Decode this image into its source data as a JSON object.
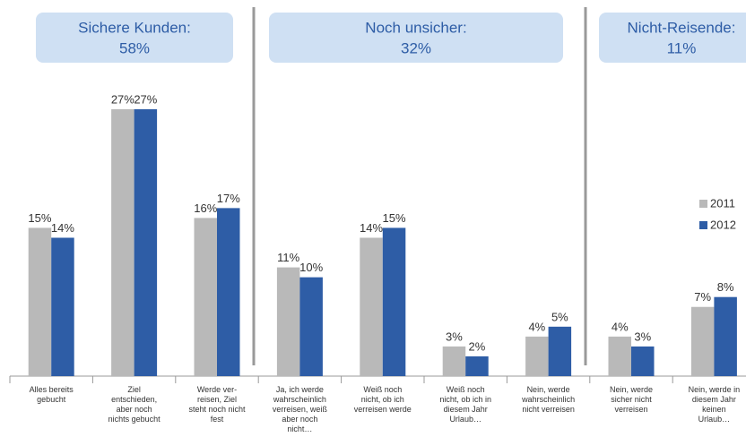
{
  "chart_data": {
    "type": "bar",
    "groups": [
      {
        "title": "Sichere Kunden:",
        "share": "58%"
      },
      {
        "title": "Noch unsicher:",
        "share": "32%"
      },
      {
        "title": "Nicht-Reisende:",
        "share": "11%"
      }
    ],
    "categories": [
      "Alles bereits gebucht",
      "Ziel entschieden, aber noch nichts gebucht",
      "Werde ver-reisen, Ziel steht noch nicht fest",
      "Ja, ich werde wahrscheinlich verreisen, weiß aber noch nicht…",
      "Weiß noch nicht, ob ich verreisen werde",
      "Weiß noch nicht, ob ich in diesem Jahr Urlaub…",
      "Nein, werde wahrscheinlich nicht verreisen",
      "Nein, werde sicher nicht verreisen",
      "Nein, werde in diesem Jahr keinen Urlaub…"
    ],
    "series": [
      {
        "name": "2011",
        "color": "#b9b9b9",
        "values": [
          15,
          27,
          16,
          11,
          14,
          3,
          4,
          4,
          7
        ],
        "value_labels": [
          "15%",
          "27%",
          "16%",
          "11%",
          "14%",
          "3%",
          "4%",
          "4%",
          "7%"
        ]
      },
      {
        "name": "2012",
        "color": "#2e5da6",
        "values": [
          14,
          27,
          17,
          10,
          15,
          2,
          5,
          3,
          8
        ],
        "value_labels": [
          "14%",
          "27%",
          "17%",
          "10%",
          "15%",
          "2%",
          "5%",
          "3%",
          "8%"
        ]
      }
    ],
    "legend": "right"
  }
}
